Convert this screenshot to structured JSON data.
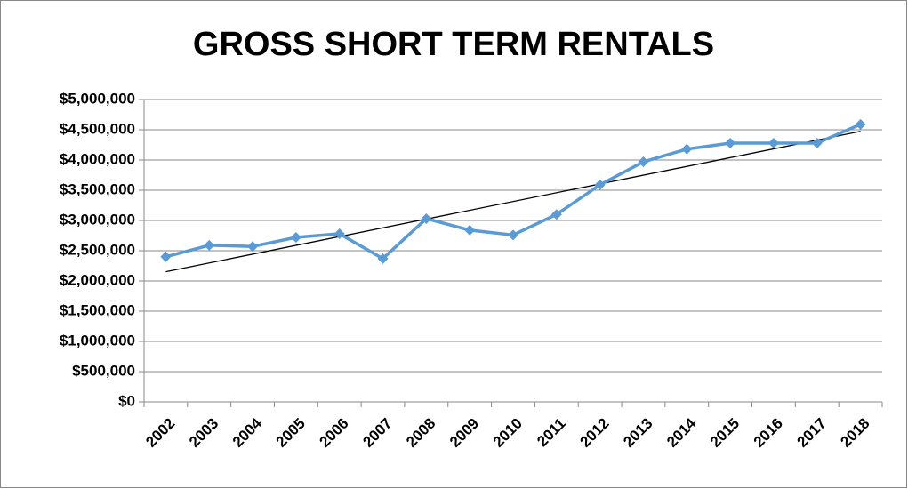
{
  "chart_data": {
    "type": "line",
    "title": "GROSS SHORT TERM RENTALS",
    "categories": [
      "2002",
      "2003",
      "2004",
      "2005",
      "2006",
      "2007",
      "2008",
      "2009",
      "2010",
      "2011",
      "2012",
      "2013",
      "2014",
      "2015",
      "2016",
      "2017",
      "2018"
    ],
    "series": [
      {
        "name": "Gross Short Term Rentals",
        "color": "#5b9bd5",
        "values": [
          2400000,
          2590000,
          2570000,
          2720000,
          2780000,
          2370000,
          3030000,
          2840000,
          2760000,
          3100000,
          3590000,
          3970000,
          4180000,
          4280000,
          4280000,
          4280000,
          4590000
        ]
      }
    ],
    "trendline": {
      "type": "linear",
      "color": "#000000"
    },
    "ylim": [
      0,
      5000000
    ],
    "yticks": [
      {
        "value": 0,
        "label": "$0"
      },
      {
        "value": 500000,
        "label": "$500,000"
      },
      {
        "value": 1000000,
        "label": "$1,000,000"
      },
      {
        "value": 1500000,
        "label": "$1,500,000"
      },
      {
        "value": 2000000,
        "label": "$2,000,000"
      },
      {
        "value": 2500000,
        "label": "$2,500,000"
      },
      {
        "value": 3000000,
        "label": "$3,000,000"
      },
      {
        "value": 3500000,
        "label": "$3,500,000"
      },
      {
        "value": 4000000,
        "label": "$4,000,000"
      },
      {
        "value": 4500000,
        "label": "$4,500,000"
      },
      {
        "value": 5000000,
        "label": "$5,000,000"
      }
    ],
    "grid": true
  }
}
